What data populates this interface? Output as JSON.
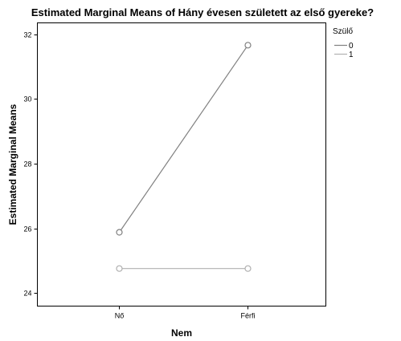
{
  "chart_data": {
    "type": "line",
    "title": "Estimated Marginal Means of Hány évesen született az első gyereke?",
    "xlabel": "Nem",
    "ylabel": "Estimated Marginal Means",
    "categories": [
      "Nő",
      "Férfi"
    ],
    "ylim": [
      23.6,
      32.35
    ],
    "yticks": [
      24,
      26,
      28,
      30,
      32
    ],
    "grid": false,
    "legend": {
      "title": "Szülő",
      "placement": "top-right"
    },
    "series": [
      {
        "name": "0",
        "values": [
          25.88,
          31.66
        ],
        "color": "#808080"
      },
      {
        "name": "1",
        "values": [
          24.76,
          24.76
        ],
        "color": "#b0b0b0"
      }
    ]
  }
}
